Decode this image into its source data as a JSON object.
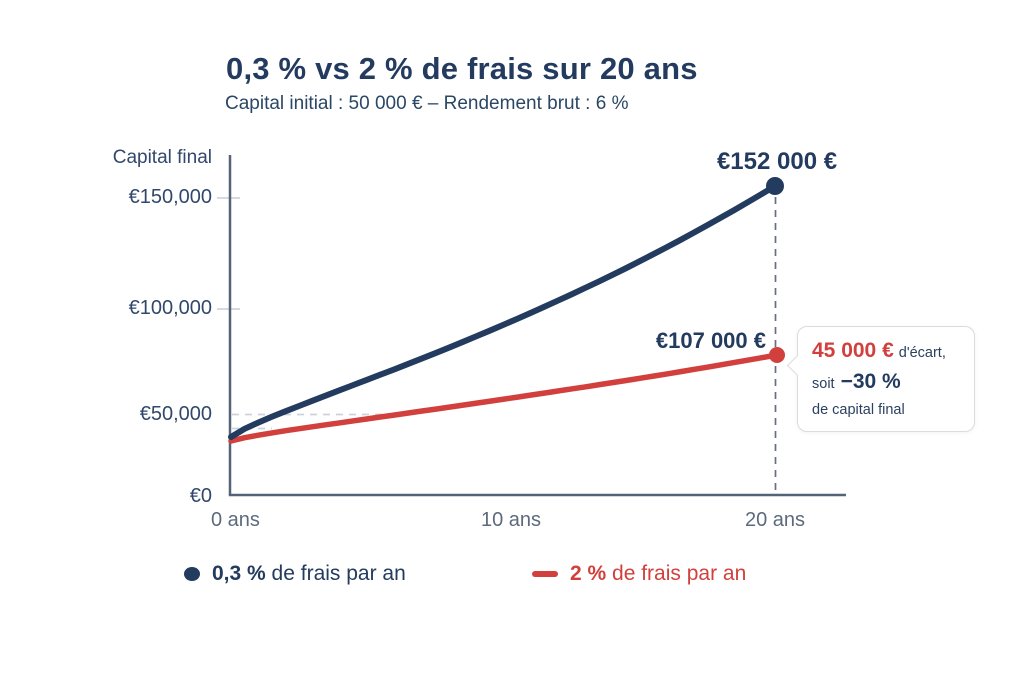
{
  "header": {
    "title": "0,3 % vs 2 % de frais sur 20 ans",
    "subtitle": "Capital initial : 50 000 € – Rendement brut : 6 %"
  },
  "chart_data": {
    "type": "line",
    "title": "0,3 % vs 2 % de frais sur 20 ans",
    "subtitle": "Capital initial : 50 000 € – Rendement brut : 6 %",
    "y_axis_title": "Capital final",
    "xlabel": "ans",
    "xlim": [
      0,
      20
    ],
    "ylim": [
      0,
      160000
    ],
    "x": [
      0,
      2,
      4,
      6,
      8,
      10,
      12,
      14,
      16,
      18,
      20
    ],
    "series": [
      {
        "name": "0,3 % de frais par an",
        "color": "#233B5E",
        "values": [
          50000,
          55900,
          62500,
          69800,
          78000,
          87200,
          97500,
          108900,
          121800,
          136100,
          152000
        ],
        "final_value": 152000,
        "end_label": "€152 000 €"
      },
      {
        "name": "2 % de frais par an",
        "color": "#D2403D",
        "values": [
          50000,
          54000,
          58200,
          62800,
          67800,
          73200,
          79000,
          85200,
          91900,
          99200,
          107000
        ],
        "final_value": 107000,
        "end_label": "€107 000 €"
      }
    ],
    "y_ticks": [
      {
        "label": "€150,000",
        "value": 150000
      },
      {
        "label": "€100,000",
        "value": 100000
      },
      {
        "label": "€50,000",
        "value": 50000
      },
      {
        "label": "€0",
        "value": 0
      }
    ],
    "x_ticks": [
      {
        "label": "0 ans",
        "value": 0
      },
      {
        "label": "10 ans",
        "value": 10
      },
      {
        "label": "20 ans",
        "value": 20
      }
    ],
    "reference_lines": {
      "horizontal_value": 50000,
      "vertical_x": 20
    },
    "annotation": "45 000 € d'écart, soit −30 % de capital final",
    "legend_position": "bottom",
    "grid": false
  },
  "callout": {
    "amount": "45 000 €",
    "amount_suffix": "d'écart,",
    "line2_prefix": "soit",
    "line2_value": "−30 %",
    "line3": "de capital final"
  },
  "legend": {
    "items": [
      {
        "marker": "dot-icon",
        "color": "#233B5E",
        "value": "0,3 %",
        "label": "de frais par an"
      },
      {
        "marker": "dash-icon",
        "color": "#D2403D",
        "value": "2 %",
        "label": "de frais par an"
      }
    ]
  },
  "colors": {
    "navy": "#233B5E",
    "red": "#D2403D",
    "axis": "#55637A",
    "x_label": "#5D6A7E",
    "y_label": "#31486B",
    "dash_light": "#CDD3DB",
    "dash_dark": "#676F7E",
    "callout_border": "#DCDCDC"
  }
}
